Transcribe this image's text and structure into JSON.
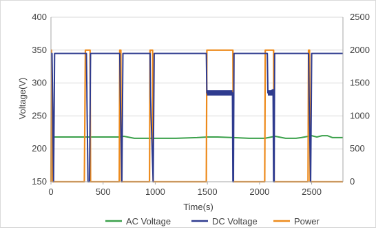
{
  "chart_data": {
    "type": "line",
    "xlabel": "Time(s)",
    "ylabel": "Voltage(V)",
    "xlim": [
      0,
      2800
    ],
    "ylim": [
      150,
      400
    ],
    "y2lim": [
      0,
      2500
    ],
    "x_ticks": [
      "0",
      "500",
      "1000",
      "1500",
      "2000",
      "2500"
    ],
    "y_ticks": [
      "150",
      "200",
      "250",
      "300",
      "350",
      "400"
    ],
    "y2_ticks": [
      "0",
      "500",
      "1000",
      "1500",
      "2000",
      "2500"
    ],
    "grid": "horizontal",
    "legend_position": "bottom",
    "colors": {
      "ac": "#3aa04a",
      "dc": "#2e3b8f",
      "power": "#ed8a1b",
      "grid": "#d9d9d9"
    },
    "series": [
      {
        "name": "AC Voltage",
        "axis": "left",
        "x": [
          0,
          400,
          650,
          700,
          800,
          900,
          1000,
          1200,
          1400,
          1500,
          1600,
          1750,
          1900,
          2050,
          2150,
          2250,
          2350,
          2400,
          2500,
          2550,
          2600,
          2650,
          2700,
          2800
        ],
        "y": [
          218,
          218,
          218,
          219,
          216,
          216,
          216,
          216,
          217,
          218,
          218,
          217,
          216,
          216,
          219,
          216,
          216,
          217,
          220,
          218,
          220,
          220,
          217,
          217
        ]
      },
      {
        "name": "DC Voltage",
        "axis": "left",
        "x": [
          0,
          10,
          15,
          25,
          35,
          340,
          345,
          345,
          355,
          370,
          380,
          660,
          665,
          680,
          690,
          950,
          955,
          980,
          990,
          1490,
          1495,
          1740,
          1745,
          1750,
          1755,
          2075,
          2080,
          2130,
          2135,
          2140,
          2145,
          2470,
          2475,
          2490,
          2500,
          2800
        ],
        "y": [
          345,
          345,
          285,
          150,
          345,
          345,
          285,
          280,
          150,
          150,
          345,
          345,
          280,
          150,
          345,
          345,
          280,
          150,
          345,
          345,
          285,
          285,
          150,
          150,
          345,
          345,
          285,
          290,
          150,
          150,
          345,
          345,
          280,
          150,
          345,
          345
        ]
      },
      {
        "name": "Power",
        "axis": "right",
        "x": [
          0,
          5,
          15,
          320,
          330,
          375,
          380,
          655,
          660,
          670,
          675,
          945,
          950,
          975,
          980,
          1490,
          1495,
          1745,
          1750,
          2050,
          2055,
          2135,
          2140,
          2465,
          2470,
          2480,
          2485,
          2800
        ],
        "y": [
          0,
          2000,
          0,
          0,
          2000,
          2000,
          0,
          0,
          2000,
          2000,
          0,
          0,
          2000,
          2000,
          0,
          0,
          2000,
          2000,
          0,
          0,
          2000,
          2000,
          0,
          0,
          2000,
          2000,
          0,
          0
        ]
      }
    ],
    "legend": [
      "AC Voltage",
      "DC Voltage",
      "Power"
    ]
  }
}
